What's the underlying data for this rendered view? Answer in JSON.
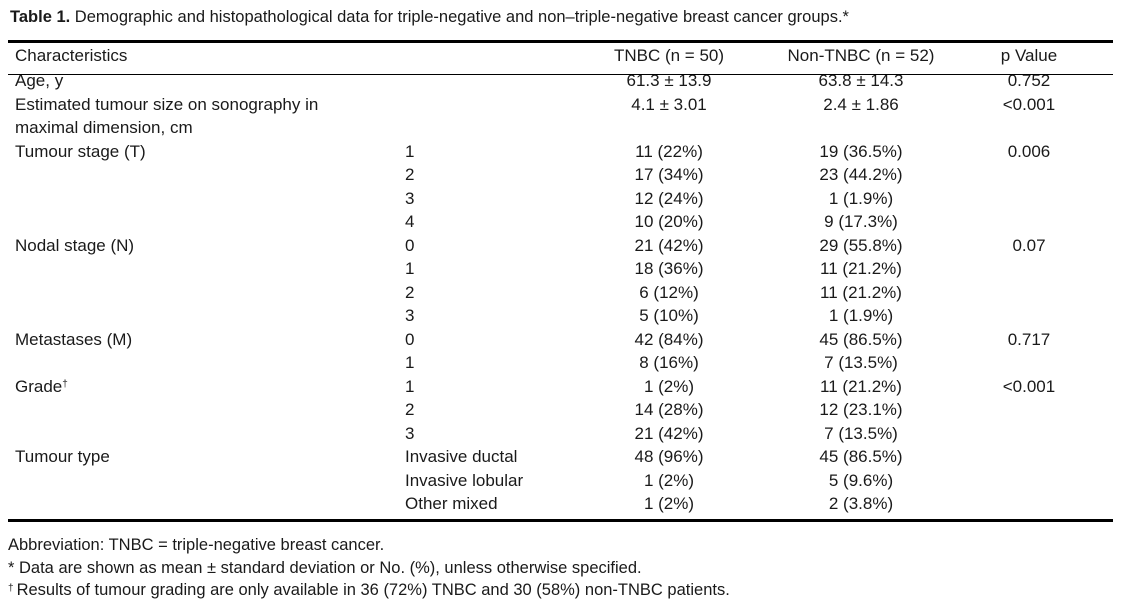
{
  "caption": {
    "label": "Table 1.",
    "text": " Demographic and histopathological data for triple-negative and non–triple-negative breast cancer groups.*"
  },
  "headers": {
    "characteristics": "Characteristics",
    "tnbc": "TNBC (n = 50)",
    "non_tnbc": "Non-TNBC (n = 52)",
    "p": "p Value"
  },
  "rows": [
    {
      "char": "Age, y",
      "sub": "",
      "tnbc": "61.3 ± 13.9",
      "non": "63.8 ± 14.3",
      "p": "0.752"
    },
    {
      "char": "Estimated tumour size on sonography in maximal dimension, cm",
      "sub": "",
      "tnbc": "4.1 ± 3.01",
      "non": "2.4 ± 1.86",
      "p": "<0.001"
    },
    {
      "char": "Tumour stage (T)",
      "sub": "1",
      "tnbc": "11 (22%)",
      "non": "19 (36.5%)",
      "p": "0.006"
    },
    {
      "char": "",
      "sub": "2",
      "tnbc": "17 (34%)",
      "non": "23 (44.2%)",
      "p": ""
    },
    {
      "char": "",
      "sub": "3",
      "tnbc": "12 (24%)",
      "non": "1 (1.9%)",
      "p": ""
    },
    {
      "char": "",
      "sub": "4",
      "tnbc": "10 (20%)",
      "non": "9 (17.3%)",
      "p": ""
    },
    {
      "char": "Nodal stage (N)",
      "sub": "0",
      "tnbc": "21 (42%)",
      "non": "29 (55.8%)",
      "p": "0.07"
    },
    {
      "char": "",
      "sub": "1",
      "tnbc": "18 (36%)",
      "non": "11 (21.2%)",
      "p": ""
    },
    {
      "char": "",
      "sub": "2",
      "tnbc": "6 (12%)",
      "non": "11 (21.2%)",
      "p": ""
    },
    {
      "char": "",
      "sub": "3",
      "tnbc": "5 (10%)",
      "non": "1 (1.9%)",
      "p": ""
    },
    {
      "char": "Metastases (M)",
      "sub": "0",
      "tnbc": "42 (84%)",
      "non": "45 (86.5%)",
      "p": "0.717"
    },
    {
      "char": "",
      "sub": "1",
      "tnbc": "8 (16%)",
      "non": "7 (13.5%)",
      "p": ""
    },
    {
      "char": "Grade",
      "dagger": "†",
      "sub": "1",
      "tnbc": "1 (2%)",
      "non": "11 (21.2%)",
      "p": "<0.001"
    },
    {
      "char": "",
      "sub": "2",
      "tnbc": "14 (28%)",
      "non": "12 (23.1%)",
      "p": ""
    },
    {
      "char": "",
      "sub": "3",
      "tnbc": "21 (42%)",
      "non": "7 (13.5%)",
      "p": ""
    },
    {
      "char": "Tumour type",
      "sub": "Invasive ductal",
      "tnbc": "48 (96%)",
      "non": "45 (86.5%)",
      "p": ""
    },
    {
      "char": "",
      "sub": "Invasive lobular",
      "tnbc": "1 (2%)",
      "non": "5 (9.6%)",
      "p": ""
    },
    {
      "char": "",
      "sub": "Other mixed",
      "tnbc": "1 (2%)",
      "non": "2 (3.8%)",
      "p": ""
    }
  ],
  "notes": {
    "abbreviation": "Abbreviation: TNBC = triple-negative breast cancer.",
    "star_mark": "*",
    "star_text": " Data are shown as mean ± standard deviation or No. (%), unless otherwise specified.",
    "dagger_mark": "†",
    "dagger_text": "Results of tumour grading are only available in 36 (72%) TNBC and 30 (58%) non-TNBC patients."
  }
}
